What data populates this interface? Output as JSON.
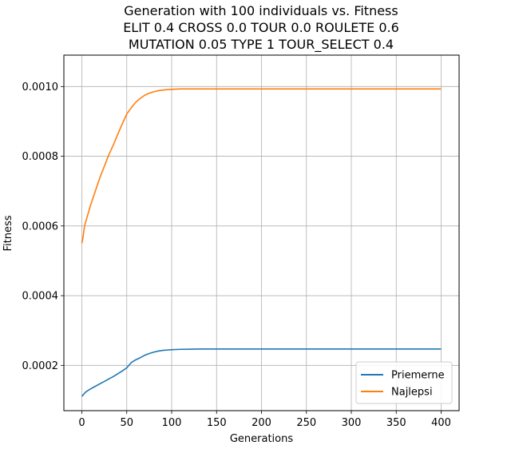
{
  "chart_data": {
    "type": "line",
    "title_lines": [
      "Generation with 100 individuals vs. Fitness",
      "ELIT 0.4 CROSS 0.0 TOUR 0.0 ROULETE 0.6",
      "MUTATION 0.05 TYPE 1 TOUR_SELECT 0.4"
    ],
    "xlabel": "Generations",
    "ylabel": "Fitness",
    "xlim": [
      -20,
      420
    ],
    "ylim": [
      7.01e-05,
      0.0010901
    ],
    "xticks": [
      0,
      50,
      100,
      150,
      200,
      250,
      300,
      350,
      400
    ],
    "xtick_labels": [
      "0",
      "50",
      "100",
      "150",
      "200",
      "250",
      "300",
      "350",
      "400"
    ],
    "yticks": [
      0.0002,
      0.0004,
      0.0006,
      0.0008,
      0.001
    ],
    "ytick_labels": [
      "0.0002",
      "0.0004",
      "0.0006",
      "0.0008",
      "0.0010"
    ],
    "grid": true,
    "legend_position": "lower-right",
    "series": [
      {
        "name": "Priemerne",
        "color": "#1f77b4",
        "x": [
          0,
          3,
          5,
          10,
          15,
          20,
          25,
          30,
          35,
          40,
          45,
          50,
          55,
          60,
          65,
          70,
          75,
          80,
          85,
          90,
          95,
          100,
          110,
          120,
          130,
          140,
          150,
          200,
          250,
          300,
          350,
          400
        ],
        "y": [
          0.000111,
          0.00012,
          0.000125,
          0.000133,
          0.00014,
          0.000147,
          0.000154,
          0.000161,
          0.000168,
          0.000176,
          0.000184,
          0.000193,
          0.000208,
          0.000216,
          0.000222,
          0.000229,
          0.000234,
          0.000238,
          0.000241,
          0.000243,
          0.000244,
          0.000245,
          0.000246,
          0.0002465,
          0.000247,
          0.000247,
          0.000247,
          0.000247,
          0.000247,
          0.000247,
          0.000247,
          0.000247
        ]
      },
      {
        "name": "Najlepsi",
        "color": "#ff7f0e",
        "x": [
          0,
          1,
          3,
          5,
          10,
          15,
          20,
          25,
          30,
          35,
          40,
          45,
          50,
          55,
          60,
          65,
          70,
          75,
          80,
          85,
          90,
          95,
          100,
          110,
          120,
          130,
          150,
          200,
          250,
          300,
          350,
          400
        ],
        "y": [
          0.00055,
          0.000562,
          0.0006,
          0.000618,
          0.000662,
          0.0007,
          0.000738,
          0.000771,
          0.000804,
          0.000832,
          0.000863,
          0.000893,
          0.000921,
          0.000939,
          0.000955,
          0.000966,
          0.000975,
          0.000981,
          0.000985,
          0.000988,
          0.00099,
          0.000991,
          0.000992,
          0.000993,
          0.000993,
          0.000993,
          0.000993,
          0.000993,
          0.000993,
          0.000993,
          0.000993,
          0.000993
        ]
      }
    ]
  }
}
